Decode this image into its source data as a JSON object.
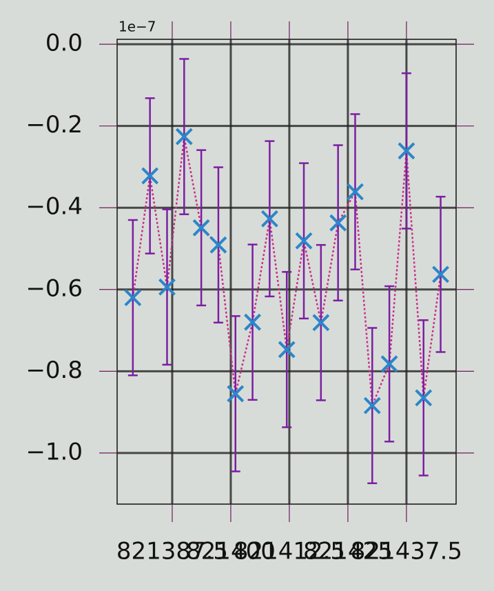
{
  "chart_data": {
    "type": "errorbar",
    "y_offset_label": "1e−7",
    "x": [
      821379.1,
      821382.75,
      821386.4,
      821390.05,
      821393.7,
      821397.35,
      821401.0,
      821404.65,
      821408.3,
      821411.95,
      821415.6,
      821419.25,
      821422.9,
      821426.55,
      821430.2,
      821433.85,
      821437.5,
      821441.15,
      821444.8
    ],
    "series": [
      {
        "values": [
          -0.62,
          -0.322,
          -0.594,
          -0.226,
          -0.449,
          -0.491,
          -0.855,
          -0.68,
          -0.427,
          -0.747,
          -0.481,
          -0.681,
          -0.437,
          -0.361,
          -0.884,
          -0.782,
          -0.261,
          -0.865,
          -0.563
        ],
        "errors": [
          0.19,
          0.19,
          0.19,
          0.19,
          0.19,
          0.19,
          0.19,
          0.19,
          0.19,
          0.19,
          0.19,
          0.19,
          0.19,
          0.19,
          0.19,
          0.19,
          0.19,
          0.19,
          0.19
        ],
        "color": "#2b86c8",
        "line_color": "#c8308c",
        "error_color": "#7b1fa2"
      }
    ],
    "xlim": [
      821375.74,
      821448.1
    ],
    "ylim": [
      -1.125,
      0.012
    ],
    "xticks": [
      821387.5,
      821400,
      821412.5,
      821425,
      821437.5
    ],
    "yticks": [
      {
        "value": 0,
        "label": "0.0"
      },
      {
        "value": -0.2,
        "label": "−0.2"
      },
      {
        "value": -0.4,
        "label": "−0.4"
      },
      {
        "value": -0.6,
        "label": "−0.6"
      },
      {
        "value": -0.8,
        "label": "−0.8"
      },
      {
        "value": -1.0,
        "label": "−1.0"
      }
    ],
    "grid": true
  }
}
